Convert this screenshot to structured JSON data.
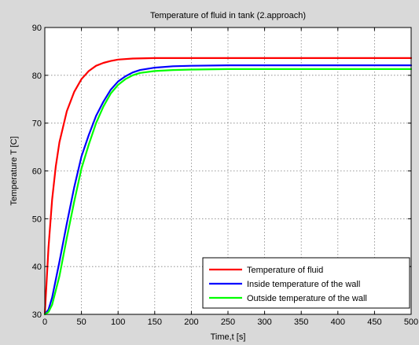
{
  "chart_data": {
    "type": "line",
    "title": "Temperature of fluid in tank (2.approach)",
    "xlabel": "Time,t [s]",
    "ylabel": "Temperature T [C]",
    "xlim": [
      0,
      500
    ],
    "ylim": [
      30,
      90
    ],
    "xticks": [
      0,
      50,
      100,
      150,
      200,
      250,
      300,
      350,
      400,
      450,
      500
    ],
    "yticks": [
      30,
      40,
      50,
      60,
      70,
      80,
      90
    ],
    "grid": true,
    "legend_position": "bottom-right",
    "series": [
      {
        "name": "Temperature of fluid",
        "color": "#ff0000",
        "x": [
          0,
          5,
          10,
          15,
          20,
          30,
          40,
          50,
          60,
          70,
          80,
          90,
          100,
          120,
          150,
          200,
          250,
          300,
          350,
          400,
          450,
          500
        ],
        "y": [
          30,
          44,
          54,
          61,
          66,
          72.5,
          76.5,
          79.2,
          80.9,
          82,
          82.6,
          83,
          83.3,
          83.5,
          83.6,
          83.6,
          83.6,
          83.6,
          83.6,
          83.6,
          83.6,
          83.6
        ]
      },
      {
        "name": "Inside temperature of the wall",
        "color": "#0000ff",
        "x": [
          0,
          5,
          10,
          20,
          30,
          40,
          50,
          60,
          70,
          80,
          90,
          100,
          110,
          120,
          130,
          150,
          175,
          200,
          250,
          300,
          350,
          400,
          450,
          500
        ],
        "y": [
          30,
          31,
          33.5,
          41,
          49,
          56.5,
          63,
          67.5,
          71.5,
          74.5,
          77,
          78.7,
          79.8,
          80.6,
          81.1,
          81.6,
          81.9,
          82,
          82.1,
          82.1,
          82.1,
          82.1,
          82.1,
          82.1
        ]
      },
      {
        "name": "Outside temperature of the wall",
        "color": "#00ff00",
        "x": [
          0,
          5,
          10,
          20,
          30,
          40,
          50,
          60,
          70,
          80,
          90,
          100,
          110,
          120,
          130,
          150,
          175,
          200,
          250,
          300,
          350,
          400,
          450,
          500
        ],
        "y": [
          30,
          30.5,
          32,
          38,
          46,
          53.5,
          60.5,
          65.5,
          70,
          73.5,
          76.2,
          78,
          79.2,
          80,
          80.5,
          80.9,
          81.1,
          81.2,
          81.3,
          81.3,
          81.3,
          81.3,
          81.3,
          81.3
        ]
      }
    ]
  }
}
